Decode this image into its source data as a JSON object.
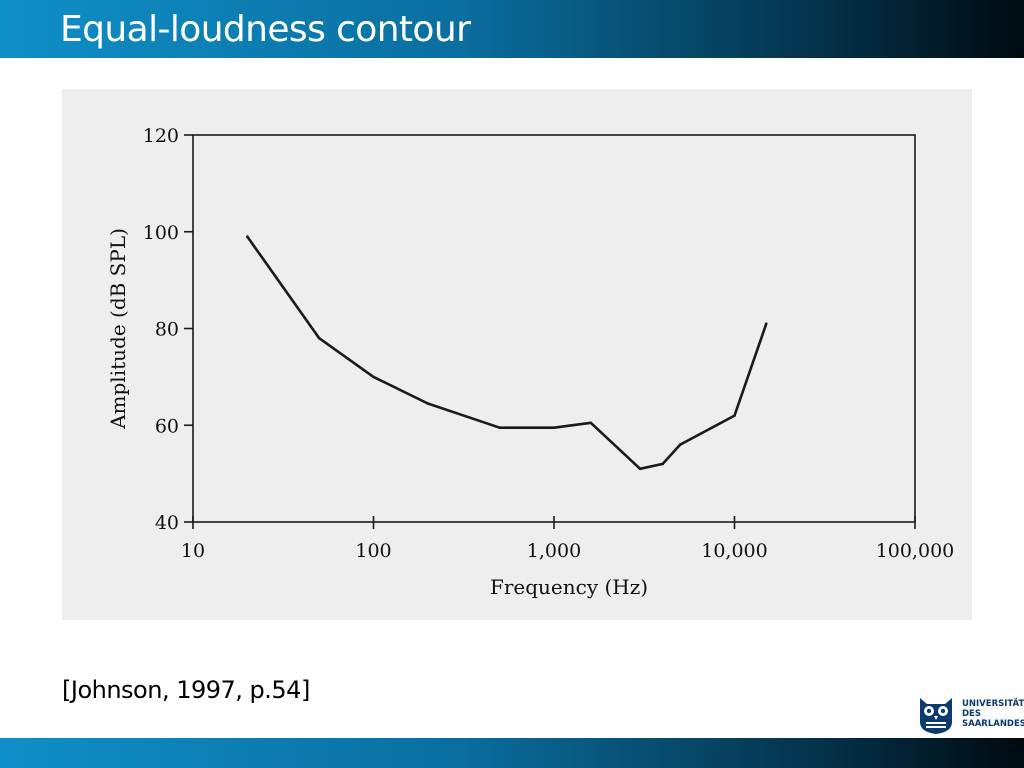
{
  "slide": {
    "title": "Equal-loudness contour",
    "citation": "[Johnson, 1997, p.54]"
  },
  "logo": {
    "lines": [
      "UNIVERSITÄT",
      "DES",
      "SAARLANDES"
    ],
    "icon": "owl-icon",
    "color": "#0b3a6e"
  },
  "colors": {
    "bar_start": "#0f8fc8",
    "bar_end": "#000a10",
    "figure_bg": "#eeeeee",
    "ink": "#1a1a1a"
  },
  "chart_data": {
    "type": "line",
    "xlabel": "Frequency (Hz)",
    "ylabel": "Amplitude (dB SPL)",
    "xscale": "log",
    "xlim": [
      10,
      100000
    ],
    "ylim": [
      40,
      120
    ],
    "xticks": [
      10,
      100,
      1000,
      10000,
      100000
    ],
    "xtick_labels": [
      "10",
      "100",
      "1,000",
      "10,000",
      "100,000"
    ],
    "yticks": [
      40,
      60,
      80,
      100,
      120
    ],
    "ytick_labels": [
      "40",
      "60",
      "80",
      "100",
      "120"
    ],
    "grid": false,
    "series": [
      {
        "x": [
          20,
          50,
          100,
          200,
          500,
          1000,
          1600,
          3000,
          4000,
          5000,
          10000,
          15000
        ],
        "y": [
          99,
          78,
          70,
          64.5,
          59.5,
          59.5,
          60.5,
          51,
          52,
          56,
          62,
          81
        ]
      }
    ]
  }
}
